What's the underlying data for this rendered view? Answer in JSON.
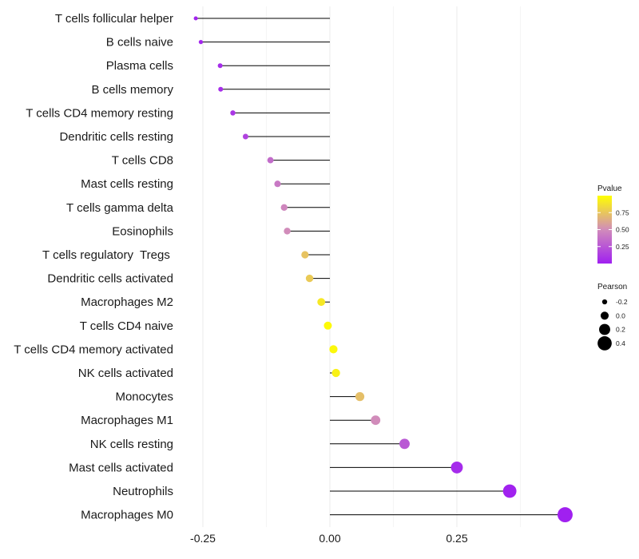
{
  "chart_data": {
    "type": "lollipop",
    "title": "",
    "xlabel": "",
    "ylabel": "",
    "xlim": [
      -0.36,
      0.5
    ],
    "xticks": [
      -0.25,
      0.0,
      0.25
    ],
    "xtick_labels": [
      "-0.25",
      "0.00",
      "0.25"
    ],
    "minor_gridlines": [
      -0.125,
      0.125,
      0.375
    ],
    "baseline": 0,
    "categories": [
      "T cells follicular helper",
      "B cells naive",
      "Plasma cells",
      "B cells memory",
      "T cells CD4 memory resting",
      "Dendritic cells resting",
      "T cells CD8",
      "Mast cells resting",
      "T cells gamma delta",
      "Eosinophils",
      "T cells regulatory  Tregs ",
      "Dendritic cells activated",
      "Macrophages M2",
      "T cells CD4 naive",
      "T cells CD4 memory activated",
      "NK cells activated",
      "Monocytes",
      "Macrophages M1",
      "NK cells resting",
      "Mast cells activated",
      "Neutrophils",
      "Macrophages M0"
    ],
    "pearson": [
      -0.264,
      -0.254,
      -0.216,
      -0.215,
      -0.191,
      -0.166,
      -0.117,
      -0.103,
      -0.09,
      -0.084,
      -0.049,
      -0.04,
      -0.017,
      -0.004,
      0.007,
      0.012,
      0.059,
      0.09,
      0.147,
      0.25,
      0.354,
      0.463
    ],
    "pvalue": [
      0.02,
      0.03,
      0.06,
      0.06,
      0.1,
      0.16,
      0.35,
      0.41,
      0.47,
      0.5,
      0.74,
      0.77,
      0.9,
      0.98,
      0.97,
      0.94,
      0.72,
      0.5,
      0.26,
      0.05,
      0.01,
      0.001
    ],
    "legend": {
      "color": {
        "title": "Pvalue",
        "breaks": [
          0.25,
          0.5,
          0.75
        ],
        "labels": [
          "0.25",
          "0.50",
          "0.75"
        ],
        "low_color": "#a020f0",
        "high_color": "#ffff00",
        "range": [
          0,
          1
        ]
      },
      "size": {
        "title": "Pearson",
        "breaks": [
          -0.2,
          0.0,
          0.2,
          0.4
        ],
        "labels": [
          "-0.2",
          "0.0",
          "0.2",
          "0.4"
        ]
      }
    }
  }
}
